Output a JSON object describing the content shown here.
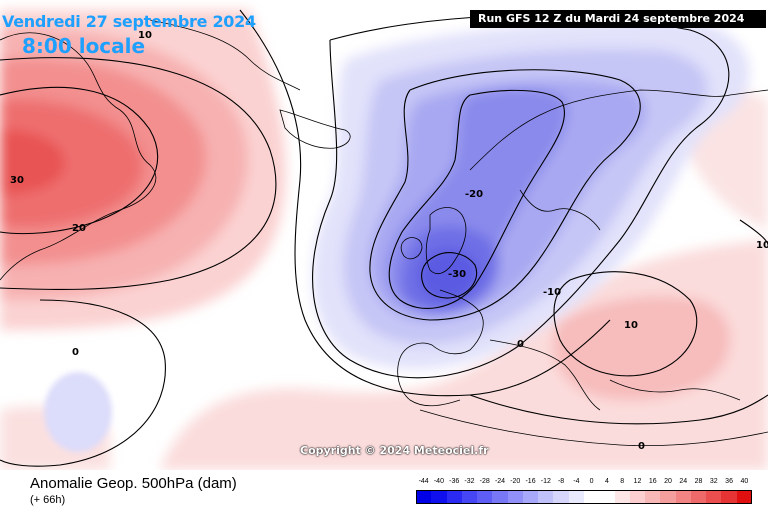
{
  "header": {
    "valid_date": "Vendredi 27 septembre 2024",
    "valid_time": "8:00 locale",
    "run_info": "Run GFS 12 Z du Mardi 24 septembre 2024"
  },
  "footer": {
    "parameter_title": "Anomalie Geop. 500hPa (dam)",
    "lead_time": "(+ 66h)",
    "copyright": "Copyright © 2024 Meteociel.fr"
  },
  "contour_labels": {
    "greenland_max": "30",
    "greenland_20": "20",
    "atlantic_10": "10",
    "atlantic_zero": "0",
    "trough_min": "-30",
    "trough_20": "-20",
    "trough_10": "-10",
    "biscay_zero": "0",
    "balkans_10": "10",
    "east_10": "10",
    "med_zero": "0"
  },
  "legend": {
    "labels": [
      "-44",
      "-40",
      "-36",
      "-32",
      "-28",
      "-24",
      "-20",
      "-16",
      "-12",
      "-8",
      "-4",
      "0",
      "4",
      "8",
      "12",
      "16",
      "20",
      "24",
      "28",
      "32",
      "36",
      "40"
    ],
    "colors": [
      "#0000e6",
      "#1010ee",
      "#2a2af2",
      "#4646f4",
      "#5e5ef6",
      "#7878f7",
      "#9090f8",
      "#a8a8fa",
      "#c0c0fb",
      "#d6d6fc",
      "#eaeafe",
      "#ffffff",
      "#ffffff",
      "#fde6e6",
      "#fbcfcf",
      "#f8b8b8",
      "#f59e9e",
      "#f28484",
      "#ee6a6a",
      "#ea4e4e",
      "#e63434",
      "#e01010"
    ]
  },
  "colors": {
    "ocean": "#ffffff",
    "coastline": "#000000",
    "accent_text": "#1ea0ff"
  }
}
